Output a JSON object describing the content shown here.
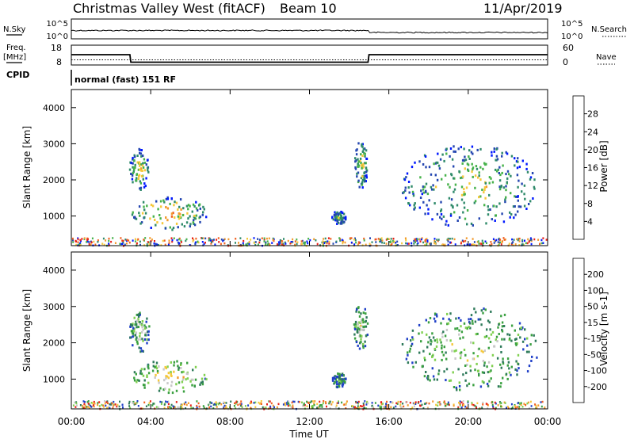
{
  "header": {
    "station": "Christmas Valley West (fitACF)",
    "beam": "Beam 10",
    "date": "11/Apr/2019"
  },
  "params": {
    "nsky_label": "N.Sky",
    "nsearch_label": "N.Search",
    "nsky_ticks": [
      "10^5",
      "10^0"
    ],
    "nsearch_ticks": [
      "10^5",
      "10^0"
    ],
    "freq_label_1": "Freq.",
    "freq_label_2": "[MHz]",
    "freq_ticks": [
      "18",
      "8"
    ],
    "nave_label": "Nave",
    "nave_ticks": [
      "60",
      "0"
    ],
    "cpid_label": "CPID",
    "cpid_text": "normal (fast) 151 RF"
  },
  "chart_data": [
    {
      "type": "line",
      "x": [
        0,
        2.95,
        3.0,
        14.95,
        15.0,
        24
      ],
      "series": [
        {
          "values": [
            13.2,
            13.2,
            9.4,
            9.4,
            13.2,
            13.2
          ]
        },
        {
          "values": [
            10.6,
            10.6,
            10.6,
            10.6,
            10.6,
            10.6
          ]
        }
      ],
      "xlim": [
        0,
        24
      ],
      "ylim": [
        8,
        18
      ]
    },
    {
      "type": "heatmap",
      "title": "",
      "ylabel": "Slant Range [km]",
      "ylim": [
        180,
        4500
      ],
      "xlim": [
        0,
        24
      ],
      "yticks": [
        "1000",
        "2000",
        "3000",
        "4000"
      ],
      "colorbar_label": "Power [dB]",
      "colorbar_ticks": [
        "4",
        "8",
        "12",
        "16",
        "20",
        "24",
        "28"
      ],
      "colorbar_colors": [
        "#0018ff",
        "#2446b0",
        "#2f8a6a",
        "#46b24a",
        "#f5c83a",
        "#f29a2c",
        "#f06020",
        "#e82018"
      ],
      "regions": [
        {
          "x0": 2.9,
          "x1": 3.9,
          "y0": 1750,
          "y1": 2900,
          "level": 0.6
        },
        {
          "x0": 3.0,
          "x1": 6.8,
          "y0": 650,
          "y1": 1550,
          "level": 0.75
        },
        {
          "x0": 13.1,
          "x1": 13.8,
          "y0": 800,
          "y1": 1200,
          "level": 0.4
        },
        {
          "x0": 14.2,
          "x1": 14.9,
          "y0": 1800,
          "y1": 3100,
          "level": 0.55
        },
        {
          "x0": 16.6,
          "x1": 23.5,
          "y0": 700,
          "y1": 3000,
          "level": 0.55
        }
      ]
    },
    {
      "type": "heatmap",
      "title": "",
      "ylabel": "Slant Range [km]",
      "xlabel": "Time UT",
      "ylim": [
        180,
        4500
      ],
      "xlim": [
        0,
        24
      ],
      "xticks": [
        "00:00",
        "04:00",
        "08:00",
        "12:00",
        "16:00",
        "20:00",
        "00:00"
      ],
      "yticks": [
        "1000",
        "2000",
        "3000",
        "4000"
      ],
      "colorbar_label": "Velocity [m s-1]",
      "colorbar_ticks": [
        "200",
        "100",
        "50",
        "15",
        "-15",
        "-50",
        "-100",
        "-200"
      ],
      "colorbar_colors": [
        "#2040c8",
        "#2e7a5a",
        "#3aa040",
        "#80d050",
        "#c8c8c8",
        "#f5c83a",
        "#f29a2c",
        "#f06020",
        "#e82018"
      ],
      "regions": [
        {
          "x0": 2.9,
          "x1": 3.9,
          "y0": 1750,
          "y1": 2900,
          "level": 0.5
        },
        {
          "x0": 3.0,
          "x1": 6.8,
          "y0": 650,
          "y1": 1550,
          "level": 0.68
        },
        {
          "x0": 13.1,
          "x1": 13.8,
          "y0": 800,
          "y1": 1200,
          "level": 0.3
        },
        {
          "x0": 14.2,
          "x1": 14.9,
          "y0": 1800,
          "y1": 3100,
          "level": 0.45
        },
        {
          "x0": 16.6,
          "x1": 23.5,
          "y0": 700,
          "y1": 3000,
          "level": 0.5
        }
      ]
    }
  ]
}
